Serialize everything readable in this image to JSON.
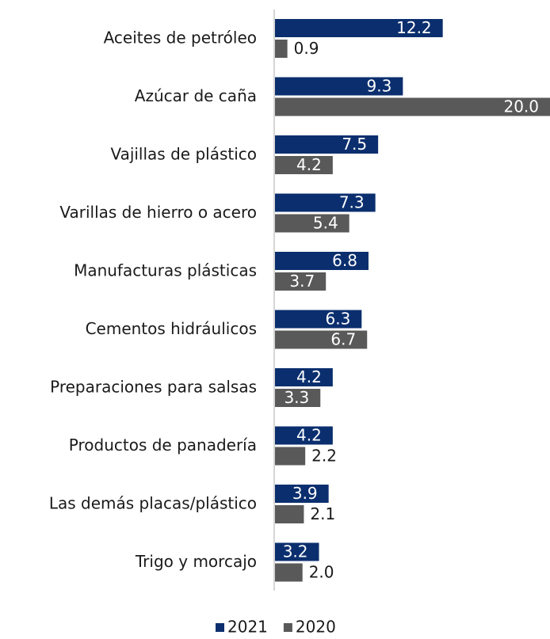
{
  "chart_data": {
    "type": "hbar",
    "categories": [
      "Aceites de petróleo",
      "Azúcar de caña",
      "Vajillas de plástico",
      "Varillas de hierro o acero",
      "Manufacturas plásticas",
      "Cementos hidráulicos",
      "Preparaciones para salsas",
      "Productos de panadería",
      "Las demás placas/plástico",
      "Trigo y morcajo"
    ],
    "series": [
      {
        "name": "2021",
        "color": "#0b2f6e",
        "values": [
          12.2,
          9.3,
          7.5,
          7.3,
          6.8,
          6.3,
          4.2,
          4.2,
          3.9,
          3.2
        ]
      },
      {
        "name": "2020",
        "color": "#595959",
        "values": [
          0.9,
          20.0,
          4.2,
          5.4,
          3.7,
          6.7,
          3.3,
          2.2,
          2.1,
          2.0
        ]
      }
    ],
    "value_labels": [
      [
        "12.2",
        "9.3",
        "7.5",
        "7.3",
        "6.8",
        "6.3",
        "4.2",
        "4.2",
        "3.9",
        "3.2"
      ],
      [
        "0.9",
        "20.0",
        "4.2",
        "5.4",
        "3.7",
        "6.7",
        "3.3",
        "2.2",
        "2.1",
        "2.0"
      ]
    ],
    "xlim": [
      0,
      20
    ],
    "legend": "bottom"
  }
}
